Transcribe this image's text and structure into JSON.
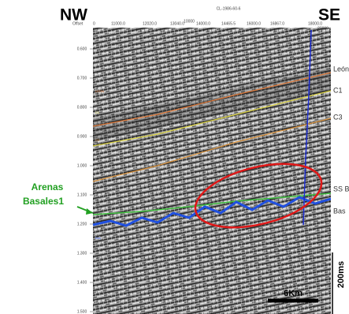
{
  "header": {
    "left": "NW",
    "right": "SE"
  },
  "section": {
    "line_name": "CL-1986-60-6",
    "offset_label": "Offset",
    "origin_label": "0",
    "top_axis": [
      "11000.0",
      "12020.0",
      "13040.0",
      "14000.0",
      "14465.5",
      "16000.0",
      "16867.0",
      "18000.0",
      "20000"
    ],
    "top_axis_sub": "10000",
    "left_axis": [
      "0.600",
      "0.700",
      "0.800",
      "0.900",
      "1.000",
      "1.100",
      "1.200",
      "1.300",
      "1.400",
      "1.500"
    ],
    "inline_labels": [
      "LEON",
      "C1",
      "C3",
      "Bas"
    ]
  },
  "horizon_labels": [
    "León",
    "C1",
    "C3",
    "SS B",
    "Bas"
  ],
  "annotation": {
    "line1": "Arenas",
    "line2": "Basales1"
  },
  "scale": {
    "vertical": "200ms",
    "horizontal": "6Km"
  }
}
